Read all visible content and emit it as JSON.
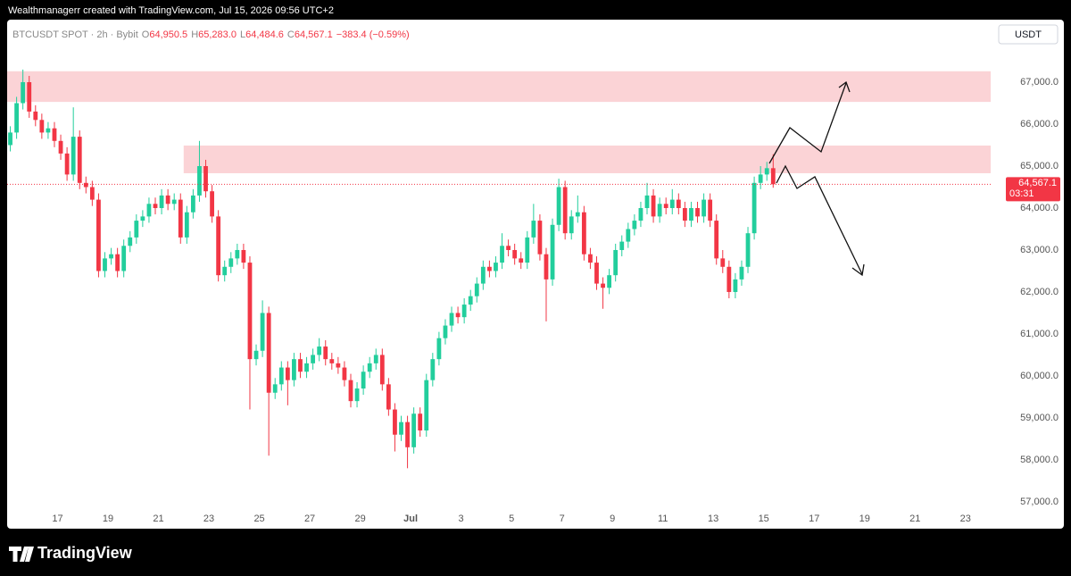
{
  "attribution": "Wealthmanagerr created with TradingView.com, Jul 15, 2026 09:56 UTC+2",
  "brand": "TradingView",
  "header": {
    "symbol": "BTCUSDT SPOT · 2h · Bybit",
    "ohlc": [
      [
        "O",
        "64,950.5"
      ],
      [
        "H",
        "65,283.0"
      ],
      [
        "L",
        "64,484.6"
      ],
      [
        "C",
        "64,567.1"
      ]
    ],
    "change": "−383.4 (−0.59%)"
  },
  "currency": "USDT",
  "chart_data": {
    "type": "candlestick",
    "up_color": "#22ce9c",
    "down_color": "#f23645",
    "zone_color": "#fbd3d6",
    "ylim": [
      56360,
      68490
    ],
    "yticks": [
      {
        "value": 57000,
        "label": "57,000.0"
      },
      {
        "value": 58000,
        "label": "58,000.0"
      },
      {
        "value": 59000,
        "label": "59,000.0"
      },
      {
        "value": 60000,
        "label": "60,000.0"
      },
      {
        "value": 61000,
        "label": "61,000.0"
      },
      {
        "value": 62000,
        "label": "62,000.0"
      },
      {
        "value": 63000,
        "label": "63,000.0"
      },
      {
        "value": 64000,
        "label": "64,000.0"
      },
      {
        "value": 65000,
        "label": "65,000.0"
      },
      {
        "value": 66000,
        "label": "66,000.0"
      },
      {
        "value": 67000,
        "label": "67,000.0"
      }
    ],
    "xlim": [
      "Jun 15",
      "Jul 24"
    ],
    "xticks": [
      {
        "value": "Jun 17",
        "label": "17"
      },
      {
        "value": "Jun 19",
        "label": "19"
      },
      {
        "value": "Jun 21",
        "label": "21"
      },
      {
        "value": "Jun 23",
        "label": "23"
      },
      {
        "value": "Jun 25",
        "label": "25"
      },
      {
        "value": "Jun 27",
        "label": "27"
      },
      {
        "value": "Jun 29",
        "label": "29"
      },
      {
        "value": "Jul 1",
        "label": "Jul"
      },
      {
        "value": "Jul 3",
        "label": "3"
      },
      {
        "value": "Jul 5",
        "label": "5"
      },
      {
        "value": "Jul 7",
        "label": "7"
      },
      {
        "value": "Jul 9",
        "label": "9"
      },
      {
        "value": "Jul 11",
        "label": "11"
      },
      {
        "value": "Jul 13",
        "label": "13"
      },
      {
        "value": "Jul 15",
        "label": "15"
      },
      {
        "value": "Jul 17",
        "label": "17"
      },
      {
        "value": "Jul 19",
        "label": "19"
      },
      {
        "value": "Jul 21",
        "label": "21"
      },
      {
        "value": "Jul 23",
        "label": "23"
      }
    ],
    "zones": [
      {
        "from": 66530,
        "to": 67260,
        "start": "Jun 15"
      },
      {
        "from": 64830,
        "to": 65490,
        "start": "Jun 22"
      }
    ],
    "last_price": {
      "value": 64567.1,
      "label": "64,567.1"
    },
    "countdown": "03:31",
    "dates": [
      "Jun 15",
      "Jun 15",
      "Jun 15",
      "Jun 15",
      "Jun 16",
      "Jun 16",
      "Jun 16",
      "Jun 16",
      "Jun 17",
      "Jun 17",
      "Jun 17",
      "Jun 17",
      "Jun 18",
      "Jun 18",
      "Jun 18",
      "Jun 18",
      "Jun 19",
      "Jun 19",
      "Jun 19",
      "Jun 19",
      "Jun 20",
      "Jun 20",
      "Jun 20",
      "Jun 20",
      "Jun 21",
      "Jun 21",
      "Jun 21",
      "Jun 21",
      "Jun 22",
      "Jun 22",
      "Jun 22",
      "Jun 22",
      "Jun 23",
      "Jun 23",
      "Jun 23",
      "Jun 23",
      "Jun 24",
      "Jun 24",
      "Jun 24",
      "Jun 24",
      "Jun 25",
      "Jun 25",
      "Jun 25",
      "Jun 25",
      "Jun 26",
      "Jun 26",
      "Jun 26",
      "Jun 26",
      "Jun 27",
      "Jun 27",
      "Jun 27",
      "Jun 27",
      "Jun 28",
      "Jun 28",
      "Jun 28",
      "Jun 28",
      "Jun 29",
      "Jun 29",
      "Jun 29",
      "Jun 29",
      "Jun 30",
      "Jun 30",
      "Jun 30",
      "Jun 30",
      "Jul 1",
      "Jul 1",
      "Jul 1",
      "Jul 1",
      "Jul 2",
      "Jul 2",
      "Jul 2",
      "Jul 2",
      "Jul 3",
      "Jul 3",
      "Jul 3",
      "Jul 3",
      "Jul 4",
      "Jul 4",
      "Jul 4",
      "Jul 4",
      "Jul 5",
      "Jul 5",
      "Jul 5",
      "Jul 5",
      "Jul 6",
      "Jul 6",
      "Jul 6",
      "Jul 6",
      "Jul 7",
      "Jul 7",
      "Jul 7",
      "Jul 7",
      "Jul 8",
      "Jul 8",
      "Jul 8",
      "Jul 8",
      "Jul 9",
      "Jul 9",
      "Jul 9",
      "Jul 9",
      "Jul 10",
      "Jul 10",
      "Jul 10",
      "Jul 10",
      "Jul 11",
      "Jul 11",
      "Jul 11",
      "Jul 11",
      "Jul 12",
      "Jul 12",
      "Jul 12",
      "Jul 12",
      "Jul 13",
      "Jul 13",
      "Jul 13",
      "Jul 13",
      "Jul 14",
      "Jul 14",
      "Jul 14",
      "Jul 14",
      "Jul 15",
      "Jul 15"
    ],
    "candles": [
      [
        65500,
        65950,
        65350,
        65800
      ],
      [
        65800,
        66650,
        65650,
        66500
      ],
      [
        66500,
        67300,
        66350,
        67000
      ],
      [
        67000,
        67150,
        66150,
        66300
      ],
      [
        66300,
        66450,
        65950,
        66100
      ],
      [
        66100,
        66250,
        65650,
        65800
      ],
      [
        65800,
        66050,
        65650,
        65900
      ],
      [
        65900,
        66050,
        65450,
        65600
      ],
      [
        65600,
        65750,
        65150,
        65300
      ],
      [
        65300,
        65450,
        64650,
        64800
      ],
      [
        64800,
        66400,
        64650,
        65700
      ],
      [
        65700,
        65850,
        64450,
        64600
      ],
      [
        64600,
        64750,
        64350,
        64500
      ],
      [
        64500,
        64650,
        64050,
        64200
      ],
      [
        64200,
        64350,
        62350,
        62500
      ],
      [
        62500,
        62950,
        62350,
        62800
      ],
      [
        62800,
        63050,
        62650,
        62900
      ],
      [
        62900,
        63050,
        62350,
        62500
      ],
      [
        62500,
        63250,
        62350,
        63100
      ],
      [
        63100,
        63450,
        62950,
        63300
      ],
      [
        63300,
        63850,
        63150,
        63700
      ],
      [
        63700,
        63950,
        63550,
        63800
      ],
      [
        63800,
        64250,
        63650,
        64100
      ],
      [
        64100,
        64250,
        63850,
        64000
      ],
      [
        64000,
        64450,
        63850,
        64300
      ],
      [
        64300,
        64450,
        63950,
        64100
      ],
      [
        64100,
        64350,
        63950,
        64200
      ],
      [
        64200,
        64350,
        63150,
        63300
      ],
      [
        63300,
        64050,
        63150,
        63900
      ],
      [
        63900,
        64450,
        63750,
        64300
      ],
      [
        64300,
        65600,
        64150,
        65000
      ],
      [
        65000,
        65150,
        64250,
        64400
      ],
      [
        64400,
        64550,
        63650,
        63800
      ],
      [
        63800,
        63950,
        62250,
        62400
      ],
      [
        62400,
        62750,
        62250,
        62600
      ],
      [
        62600,
        62950,
        62450,
        62800
      ],
      [
        62800,
        63150,
        62650,
        63000
      ],
      [
        63000,
        63150,
        62550,
        62700
      ],
      [
        62700,
        62850,
        59200,
        60400
      ],
      [
        60400,
        60750,
        60250,
        60600
      ],
      [
        60600,
        61800,
        60450,
        61500
      ],
      [
        61500,
        61650,
        58100,
        59600
      ],
      [
        59600,
        59950,
        59450,
        59800
      ],
      [
        59800,
        60350,
        59650,
        60200
      ],
      [
        60200,
        60350,
        59300,
        59900
      ],
      [
        59900,
        60550,
        59750,
        60400
      ],
      [
        60400,
        60550,
        59950,
        60100
      ],
      [
        60100,
        60450,
        59950,
        60300
      ],
      [
        60300,
        60650,
        60150,
        60500
      ],
      [
        60500,
        60900,
        60350,
        60700
      ],
      [
        60700,
        60850,
        60250,
        60400
      ],
      [
        60400,
        60550,
        60150,
        60300
      ],
      [
        60300,
        60450,
        60050,
        60200
      ],
      [
        60200,
        60350,
        59750,
        59900
      ],
      [
        59900,
        60050,
        59250,
        59400
      ],
      [
        59400,
        59850,
        59250,
        59700
      ],
      [
        59700,
        60250,
        59550,
        60100
      ],
      [
        60100,
        60450,
        59950,
        60300
      ],
      [
        60300,
        60650,
        60150,
        60500
      ],
      [
        60500,
        60650,
        59650,
        59800
      ],
      [
        59800,
        59950,
        59050,
        59200
      ],
      [
        59200,
        59350,
        58200,
        58600
      ],
      [
        58600,
        59050,
        58450,
        58900
      ],
      [
        58900,
        59050,
        57800,
        58300
      ],
      [
        58300,
        59250,
        58150,
        59100
      ],
      [
        59100,
        59250,
        58550,
        58700
      ],
      [
        58700,
        60050,
        58550,
        59900
      ],
      [
        59900,
        60550,
        59750,
        60400
      ],
      [
        60400,
        61050,
        60250,
        60900
      ],
      [
        60900,
        61350,
        60750,
        61200
      ],
      [
        61200,
        61650,
        61050,
        61500
      ],
      [
        61500,
        61650,
        61250,
        61400
      ],
      [
        61400,
        61850,
        61250,
        61700
      ],
      [
        61700,
        62050,
        61550,
        61900
      ],
      [
        61900,
        62350,
        61750,
        62200
      ],
      [
        62200,
        62750,
        62050,
        62600
      ],
      [
        62600,
        62750,
        62350,
        62500
      ],
      [
        62500,
        62850,
        62350,
        62700
      ],
      [
        62700,
        63400,
        62550,
        63100
      ],
      [
        63100,
        63250,
        62850,
        63000
      ],
      [
        63000,
        63150,
        62650,
        62800
      ],
      [
        62800,
        62950,
        62550,
        62700
      ],
      [
        62700,
        63450,
        62550,
        63300
      ],
      [
        63300,
        64100,
        63150,
        63700
      ],
      [
        63700,
        63850,
        62750,
        62900
      ],
      [
        62900,
        63050,
        61300,
        62300
      ],
      [
        62300,
        63750,
        62150,
        63600
      ],
      [
        63600,
        64700,
        63450,
        64500
      ],
      [
        64500,
        64650,
        63250,
        63400
      ],
      [
        63400,
        63950,
        63250,
        63800
      ],
      [
        63800,
        64300,
        63650,
        63900
      ],
      [
        63900,
        64050,
        62750,
        62900
      ],
      [
        62900,
        63050,
        62550,
        62700
      ],
      [
        62700,
        62850,
        62050,
        62200
      ],
      [
        62200,
        62350,
        61600,
        62100
      ],
      [
        62100,
        62550,
        61950,
        62400
      ],
      [
        62400,
        63150,
        62250,
        63000
      ],
      [
        63000,
        63350,
        62850,
        63200
      ],
      [
        63200,
        63650,
        63050,
        63500
      ],
      [
        63500,
        63850,
        63350,
        63700
      ],
      [
        63700,
        64150,
        63550,
        64000
      ],
      [
        64000,
        64600,
        63850,
        64300
      ],
      [
        64300,
        64450,
        63650,
        63800
      ],
      [
        63800,
        64250,
        63650,
        64100
      ],
      [
        64100,
        64250,
        63850,
        64000
      ],
      [
        64000,
        64450,
        63850,
        64200
      ],
      [
        64200,
        64350,
        63850,
        64000
      ],
      [
        64000,
        64150,
        63550,
        63700
      ],
      [
        63700,
        64150,
        63550,
        64000
      ],
      [
        64000,
        64150,
        63650,
        63800
      ],
      [
        63800,
        64350,
        63650,
        64200
      ],
      [
        64200,
        64350,
        63550,
        63700
      ],
      [
        63700,
        63850,
        62650,
        62800
      ],
      [
        62800,
        63000,
        62450,
        62600
      ],
      [
        62600,
        62750,
        61850,
        62000
      ],
      [
        62000,
        62450,
        61850,
        62300
      ],
      [
        62300,
        62750,
        62150,
        62600
      ],
      [
        62600,
        63550,
        62450,
        63400
      ],
      [
        63400,
        64750,
        63250,
        64600
      ],
      [
        64600,
        65000,
        64450,
        64800
      ],
      [
        64800,
        65100,
        64650,
        64950.5
      ],
      [
        64950.5,
        65283,
        64484.6,
        64567.1
      ]
    ]
  }
}
